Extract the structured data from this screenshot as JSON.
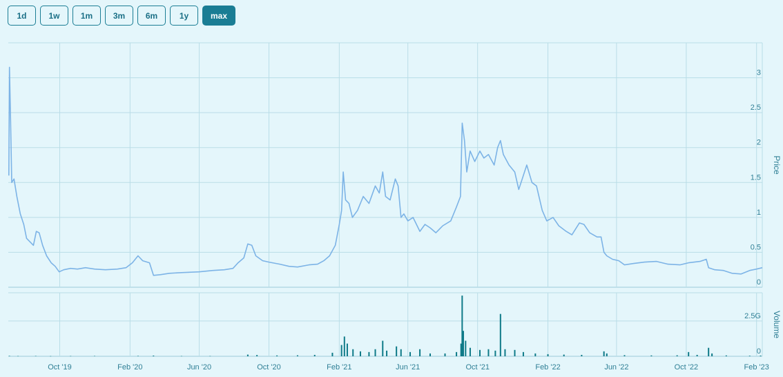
{
  "range_buttons": [
    {
      "label": "1d",
      "active": false
    },
    {
      "label": "1w",
      "active": false
    },
    {
      "label": "1m",
      "active": false
    },
    {
      "label": "3m",
      "active": false
    },
    {
      "label": "6m",
      "active": false
    },
    {
      "label": "1y",
      "active": false
    },
    {
      "label": "max",
      "active": true
    }
  ],
  "colors": {
    "price_line": "#7cb3e6",
    "volume_bars": "#0e7a88",
    "grid": "#b9dde7",
    "active_button": "#1a7d94"
  },
  "chart_data": [
    {
      "type": "line",
      "ylabel": "Price",
      "ylim": [
        0,
        3.5
      ],
      "yticks": [
        {
          "value": 0,
          "label": "0"
        },
        {
          "value": 0.5,
          "label": "0.5"
        },
        {
          "value": 1,
          "label": "1"
        },
        {
          "value": 1.5,
          "label": "1.5"
        },
        {
          "value": 2,
          "label": "2"
        },
        {
          "value": 2.5,
          "label": "2.5"
        },
        {
          "value": 3,
          "label": "3"
        }
      ],
      "xlim": [
        "2019-07-03",
        "2023-02-11"
      ],
      "xticks": [
        {
          "date": "2019-10-01",
          "label": "Oct '19"
        },
        {
          "date": "2020-02-01",
          "label": "Feb '20"
        },
        {
          "date": "2020-06-01",
          "label": "Jun '20"
        },
        {
          "date": "2020-10-01",
          "label": "Oct '20"
        },
        {
          "date": "2021-02-01",
          "label": "Feb '21"
        },
        {
          "date": "2021-06-01",
          "label": "Jun '21"
        },
        {
          "date": "2021-10-01",
          "label": "Oct '21"
        },
        {
          "date": "2022-02-01",
          "label": "Feb '22"
        },
        {
          "date": "2022-06-01",
          "label": "Jun '22"
        },
        {
          "date": "2022-10-01",
          "label": "Oct '22"
        },
        {
          "date": "2023-02-01",
          "label": "Feb '23"
        }
      ],
      "grid": true,
      "series": [
        {
          "points": [
            [
              "2019-07-04",
              1.6
            ],
            [
              "2019-07-05",
              3.15
            ],
            [
              "2019-07-07",
              2.4
            ],
            [
              "2019-07-09",
              1.5
            ],
            [
              "2019-07-13",
              1.55
            ],
            [
              "2019-07-18",
              1.3
            ],
            [
              "2019-07-24",
              1.05
            ],
            [
              "2019-07-30",
              0.9
            ],
            [
              "2019-08-04",
              0.7
            ],
            [
              "2019-08-10",
              0.65
            ],
            [
              "2019-08-16",
              0.6
            ],
            [
              "2019-08-21",
              0.8
            ],
            [
              "2019-08-26",
              0.78
            ],
            [
              "2019-09-01",
              0.6
            ],
            [
              "2019-09-08",
              0.45
            ],
            [
              "2019-09-16",
              0.35
            ],
            [
              "2019-09-23",
              0.3
            ],
            [
              "2019-09-30",
              0.22
            ],
            [
              "2019-10-08",
              0.25
            ],
            [
              "2019-10-20",
              0.27
            ],
            [
              "2019-11-01",
              0.26
            ],
            [
              "2019-11-15",
              0.28
            ],
            [
              "2019-12-01",
              0.26
            ],
            [
              "2019-12-20",
              0.25
            ],
            [
              "2020-01-10",
              0.26
            ],
            [
              "2020-01-25",
              0.28
            ],
            [
              "2020-02-05",
              0.35
            ],
            [
              "2020-02-15",
              0.45
            ],
            [
              "2020-02-23",
              0.38
            ],
            [
              "2020-03-06",
              0.35
            ],
            [
              "2020-03-13",
              0.17
            ],
            [
              "2020-03-25",
              0.18
            ],
            [
              "2020-04-10",
              0.2
            ],
            [
              "2020-05-01",
              0.21
            ],
            [
              "2020-06-01",
              0.22
            ],
            [
              "2020-06-25",
              0.24
            ],
            [
              "2020-07-15",
              0.25
            ],
            [
              "2020-07-30",
              0.27
            ],
            [
              "2020-08-08",
              0.35
            ],
            [
              "2020-08-18",
              0.42
            ],
            [
              "2020-08-25",
              0.62
            ],
            [
              "2020-09-01",
              0.6
            ],
            [
              "2020-09-08",
              0.45
            ],
            [
              "2020-09-20",
              0.38
            ],
            [
              "2020-10-01",
              0.36
            ],
            [
              "2020-10-20",
              0.33
            ],
            [
              "2020-11-05",
              0.3
            ],
            [
              "2020-11-20",
              0.29
            ],
            [
              "2020-12-10",
              0.32
            ],
            [
              "2020-12-25",
              0.33
            ],
            [
              "2021-01-05",
              0.38
            ],
            [
              "2021-01-15",
              0.45
            ],
            [
              "2021-01-25",
              0.6
            ],
            [
              "2021-02-01",
              0.9
            ],
            [
              "2021-02-05",
              1.1
            ],
            [
              "2021-02-08",
              1.65
            ],
            [
              "2021-02-12",
              1.25
            ],
            [
              "2021-02-18",
              1.2
            ],
            [
              "2021-02-24",
              1.0
            ],
            [
              "2021-03-05",
              1.1
            ],
            [
              "2021-03-15",
              1.3
            ],
            [
              "2021-03-25",
              1.2
            ],
            [
              "2021-04-05",
              1.45
            ],
            [
              "2021-04-12",
              1.35
            ],
            [
              "2021-04-18",
              1.65
            ],
            [
              "2021-04-23",
              1.3
            ],
            [
              "2021-05-01",
              1.25
            ],
            [
              "2021-05-10",
              1.55
            ],
            [
              "2021-05-15",
              1.45
            ],
            [
              "2021-05-20",
              1.0
            ],
            [
              "2021-05-25",
              1.05
            ],
            [
              "2021-06-01",
              0.95
            ],
            [
              "2021-06-10",
              1.0
            ],
            [
              "2021-06-22",
              0.8
            ],
            [
              "2021-07-01",
              0.9
            ],
            [
              "2021-07-10",
              0.85
            ],
            [
              "2021-07-20",
              0.78
            ],
            [
              "2021-08-01",
              0.88
            ],
            [
              "2021-08-15",
              0.95
            ],
            [
              "2021-08-25",
              1.15
            ],
            [
              "2021-09-01",
              1.3
            ],
            [
              "2021-09-04",
              2.35
            ],
            [
              "2021-09-08",
              2.1
            ],
            [
              "2021-09-12",
              1.65
            ],
            [
              "2021-09-18",
              1.95
            ],
            [
              "2021-09-26",
              1.8
            ],
            [
              "2021-10-05",
              1.95
            ],
            [
              "2021-10-12",
              1.85
            ],
            [
              "2021-10-20",
              1.9
            ],
            [
              "2021-10-30",
              1.75
            ],
            [
              "2021-11-05",
              2.0
            ],
            [
              "2021-11-10",
              2.1
            ],
            [
              "2021-11-15",
              1.9
            ],
            [
              "2021-11-25",
              1.75
            ],
            [
              "2021-12-05",
              1.65
            ],
            [
              "2021-12-12",
              1.4
            ],
            [
              "2021-12-18",
              1.55
            ],
            [
              "2021-12-26",
              1.75
            ],
            [
              "2022-01-04",
              1.5
            ],
            [
              "2022-01-12",
              1.45
            ],
            [
              "2022-01-22",
              1.1
            ],
            [
              "2022-01-30",
              0.95
            ],
            [
              "2022-02-10",
              1.0
            ],
            [
              "2022-02-20",
              0.88
            ],
            [
              "2022-03-05",
              0.8
            ],
            [
              "2022-03-15",
              0.75
            ],
            [
              "2022-03-28",
              0.92
            ],
            [
              "2022-04-05",
              0.9
            ],
            [
              "2022-04-15",
              0.78
            ],
            [
              "2022-04-28",
              0.72
            ],
            [
              "2022-05-05",
              0.72
            ],
            [
              "2022-05-10",
              0.5
            ],
            [
              "2022-05-15",
              0.45
            ],
            [
              "2022-05-25",
              0.4
            ],
            [
              "2022-06-05",
              0.38
            ],
            [
              "2022-06-15",
              0.32
            ],
            [
              "2022-07-01",
              0.34
            ],
            [
              "2022-07-20",
              0.36
            ],
            [
              "2022-08-10",
              0.37
            ],
            [
              "2022-08-30",
              0.33
            ],
            [
              "2022-09-20",
              0.32
            ],
            [
              "2022-10-05",
              0.35
            ],
            [
              "2022-10-25",
              0.37
            ],
            [
              "2022-11-05",
              0.4
            ],
            [
              "2022-11-09",
              0.28
            ],
            [
              "2022-11-20",
              0.25
            ],
            [
              "2022-12-05",
              0.24
            ],
            [
              "2022-12-20",
              0.2
            ],
            [
              "2023-01-05",
              0.19
            ],
            [
              "2023-01-20",
              0.24
            ],
            [
              "2023-02-01",
              0.26
            ],
            [
              "2023-02-11",
              0.28
            ]
          ]
        }
      ]
    },
    {
      "type": "bar",
      "ylabel": "Volume",
      "ylim": [
        0,
        4500000000
      ],
      "yticks": [
        {
          "value": 0,
          "label": "0"
        },
        {
          "value": 2500000000,
          "label": "2.5G"
        }
      ],
      "grid": true,
      "series": [
        {
          "points": [
            [
              "2019-07-05",
              30000000
            ],
            [
              "2019-07-20",
              20000000
            ],
            [
              "2019-08-20",
              25000000
            ],
            [
              "2019-09-15",
              15000000
            ],
            [
              "2019-10-20",
              20000000
            ],
            [
              "2019-12-01",
              25000000
            ],
            [
              "2020-02-15",
              30000000
            ],
            [
              "2020-03-13",
              50000000
            ],
            [
              "2020-05-01",
              20000000
            ],
            [
              "2020-06-20",
              20000000
            ],
            [
              "2020-08-25",
              120000000
            ],
            [
              "2020-09-10",
              90000000
            ],
            [
              "2020-10-15",
              60000000
            ],
            [
              "2020-11-20",
              70000000
            ],
            [
              "2020-12-20",
              100000000
            ],
            [
              "2021-01-20",
              250000000
            ],
            [
              "2021-02-05",
              800000000
            ],
            [
              "2021-02-10",
              1400000000
            ],
            [
              "2021-02-15",
              900000000
            ],
            [
              "2021-02-25",
              500000000
            ],
            [
              "2021-03-10",
              350000000
            ],
            [
              "2021-03-25",
              300000000
            ],
            [
              "2021-04-05",
              500000000
            ],
            [
              "2021-04-18",
              1100000000
            ],
            [
              "2021-04-25",
              400000000
            ],
            [
              "2021-05-12",
              700000000
            ],
            [
              "2021-05-20",
              500000000
            ],
            [
              "2021-06-05",
              300000000
            ],
            [
              "2021-06-22",
              500000000
            ],
            [
              "2021-07-10",
              200000000
            ],
            [
              "2021-08-05",
              200000000
            ],
            [
              "2021-08-25",
              300000000
            ],
            [
              "2021-09-02",
              900000000
            ],
            [
              "2021-09-04",
              4300000000
            ],
            [
              "2021-09-06",
              1800000000
            ],
            [
              "2021-09-10",
              1100000000
            ],
            [
              "2021-09-18",
              600000000
            ],
            [
              "2021-10-05",
              450000000
            ],
            [
              "2021-10-20",
              500000000
            ],
            [
              "2021-11-01",
              400000000
            ],
            [
              "2021-11-10",
              3000000000
            ],
            [
              "2021-11-18",
              500000000
            ],
            [
              "2021-12-05",
              450000000
            ],
            [
              "2021-12-20",
              300000000
            ],
            [
              "2022-01-10",
              200000000
            ],
            [
              "2022-02-01",
              150000000
            ],
            [
              "2022-03-01",
              120000000
            ],
            [
              "2022-04-01",
              100000000
            ],
            [
              "2022-05-10",
              350000000
            ],
            [
              "2022-05-15",
              200000000
            ],
            [
              "2022-06-15",
              80000000
            ],
            [
              "2022-08-01",
              60000000
            ],
            [
              "2022-09-15",
              70000000
            ],
            [
              "2022-10-05",
              300000000
            ],
            [
              "2022-10-20",
              100000000
            ],
            [
              "2022-11-09",
              600000000
            ],
            [
              "2022-11-15",
              200000000
            ],
            [
              "2022-12-10",
              60000000
            ],
            [
              "2023-01-20",
              40000000
            ],
            [
              "2023-02-08",
              50000000
            ]
          ]
        }
      ]
    }
  ]
}
